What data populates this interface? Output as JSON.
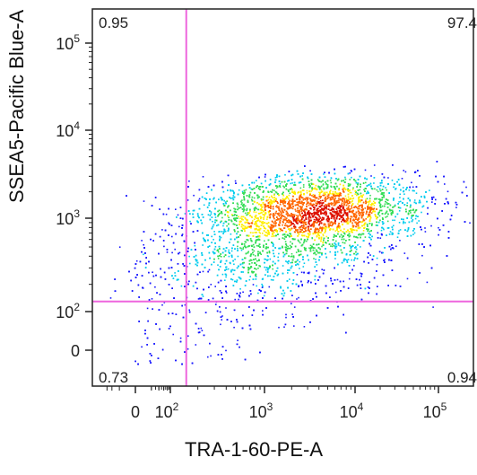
{
  "chart_data": {
    "type": "scatter",
    "title": "",
    "xlabel": "TRA-1-60-PE-A",
    "ylabel": "SSEA5-Pacific Blue-A",
    "x_scale": "biexponential",
    "y_scale": "biexponential",
    "x_ticks": [
      {
        "value": 0,
        "label": "0"
      },
      {
        "value": 100,
        "base": "10",
        "exp": "2"
      },
      {
        "value": 1000,
        "base": "10",
        "exp": "3"
      },
      {
        "value": 10000,
        "base": "10",
        "exp": "4"
      },
      {
        "value": 100000,
        "base": "10",
        "exp": "5"
      }
    ],
    "y_ticks": [
      {
        "value": 0,
        "label": "0"
      },
      {
        "value": 100,
        "base": "10",
        "exp": "2"
      },
      {
        "value": 1000,
        "base": "10",
        "exp": "3"
      },
      {
        "value": 10000,
        "base": "10",
        "exp": "4"
      },
      {
        "value": 100000,
        "base": "10",
        "exp": "5"
      }
    ],
    "gate": {
      "x": 150,
      "y": 130,
      "color": "#ee66dd"
    },
    "quadrants": {
      "top_left": "0.95",
      "top_right": "97.4",
      "bottom_left": "0.73",
      "bottom_right": "0.94"
    },
    "population": {
      "center_x": 3200,
      "center_y": 1150,
      "n_points": 9000,
      "color_scale": [
        "#1a1aff",
        "#00ccee",
        "#33dd55",
        "#ffee00",
        "#ff6600",
        "#dd1100"
      ]
    },
    "grid": false,
    "legend": "none"
  }
}
